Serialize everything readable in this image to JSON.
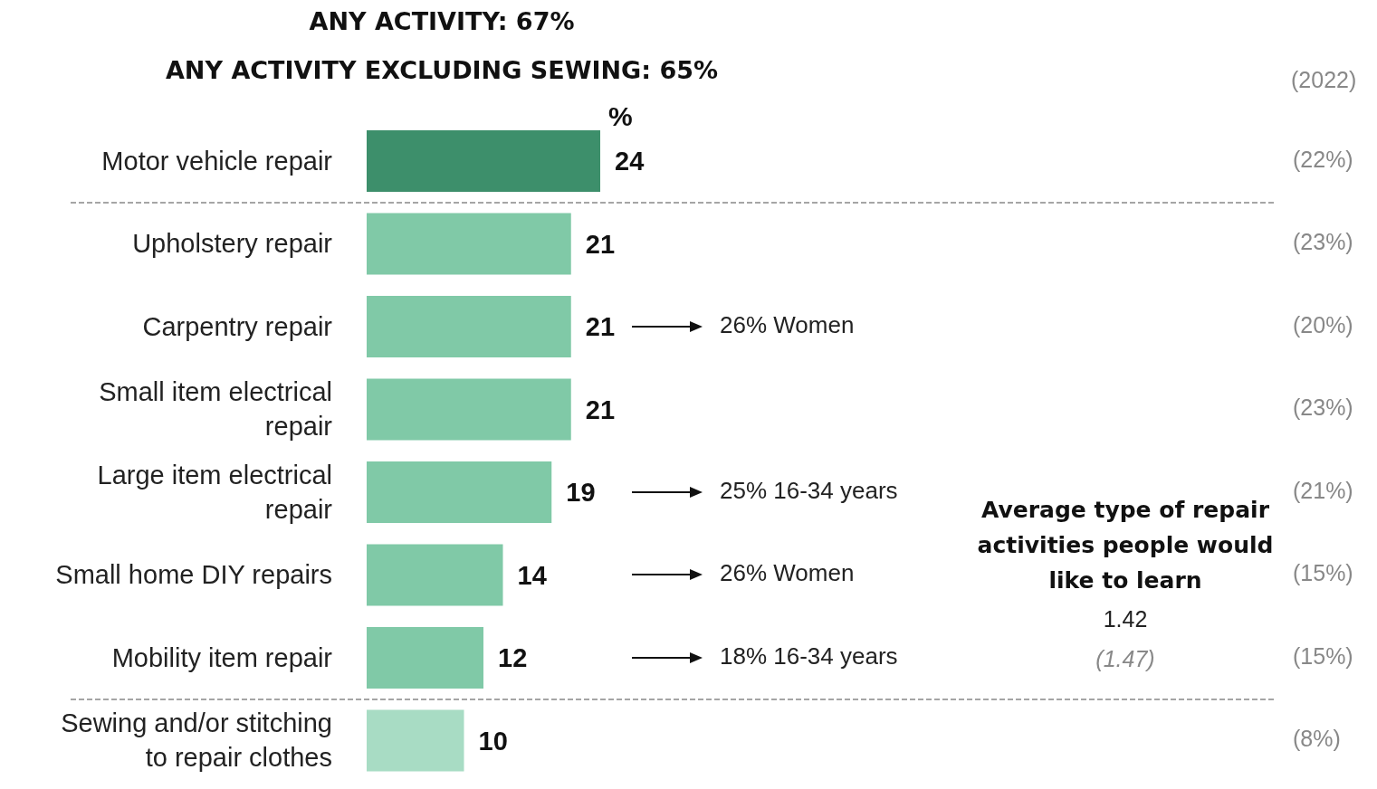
{
  "chart_data": {
    "type": "bar",
    "orientation": "horizontal",
    "title": "ANY ACTIVITY: 67%",
    "subtitle": "ANY ACTIVITY EXCLUDING SEWING: 65%",
    "categories": [
      "Motor vehicle repair",
      "Upholstery repair",
      "Carpentry repair",
      "Small item electrical repair",
      "Large item electrical repair",
      "Small home DIY repairs",
      "Mobility item repair",
      "Sewing and/or stitching to repair clothes"
    ],
    "values": [
      24,
      21,
      21,
      21,
      19,
      14,
      12,
      10
    ],
    "colors": [
      "#3d8f6b",
      "#80c9a7",
      "#80c9a7",
      "#80c9a7",
      "#80c9a7",
      "#80c9a7",
      "#80c9a7",
      "#a8dcc4"
    ],
    "data_labels": true,
    "annotations": [
      "%",
      "(2022)",
      "(22%)",
      "(23%)",
      "(20%)",
      "(23%)",
      "(21%)",
      "(15%)",
      "(15%)",
      "(8%)",
      "26% Women",
      "25% 16-34 years",
      "26% Women",
      "18% 16-34 years",
      "Average type of repair activities people would like to learn",
      "1.42",
      "(1.47)"
    ]
  }
}
